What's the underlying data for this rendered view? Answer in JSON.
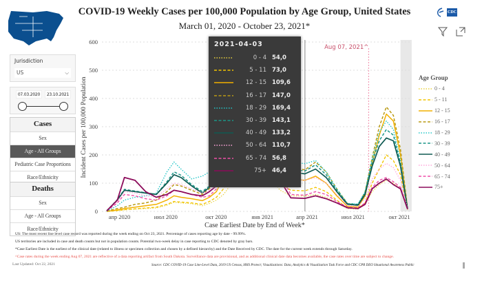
{
  "header": {
    "title": "COVID-19 Weekly Cases per 100,000 Population by Age Group, United States",
    "subtitle": "March 01, 2020 - October 23, 2021*",
    "logo_text": "CDC"
  },
  "filters": {
    "jurisdiction_label": "Jurisdiction",
    "jurisdiction_value": "US",
    "start_date": "07.03.2020",
    "end_date": "23.10.2021"
  },
  "cases_nav": {
    "title": "Cases",
    "items": [
      "Sex",
      "Age - All Groups",
      "Pediatric Case Proportions",
      "Race/Ethnicity"
    ],
    "active": 1
  },
  "deaths_nav": {
    "title": "Deaths",
    "items": [
      "Sex",
      "Age - All Groups",
      "Race/Ethnicity"
    ]
  },
  "notes": [
    "US: The most recent line level case record was reported during the week ending on Oct 23, 2021. Percentage of cases reporting age by date - 99.99%.",
    "US territories are included in case and death counts but not in population counts. Potential two-week delay in case reporting to CDC denoted by gray bars.",
    "*Case Earliest Date is the earliest of the clinical date (related to illness or specimen collection and chosen by a defined hierarchy) and the Date Received by CDC. The date for the current week extends through Saturday.",
    "^Case rates during the week ending Aug 07, 2021 are reflective of a data reporting artifact from South Dakota. Surveillance data are provisional, and as additional clinical date data becomes available, the case rates over time are subject to change."
  ],
  "last_updated": "Last Updated: Oct 22, 2021",
  "source": "Source: CDC COVID-19 Case Line-Level Data, 2019 US Census, HHS Protect; Visualizations: Data, Analytics & Visualization Task Force and CDC CPR DEO Situational Awareness Public",
  "tooltip": {
    "date": "2021-04-03",
    "rows": [
      [
        "0 - 4",
        "54,0"
      ],
      [
        "5 - 11",
        "73,0"
      ],
      [
        "12 - 15",
        "109,6"
      ],
      [
        "16 - 17",
        "147,0"
      ],
      [
        "18 - 29",
        "169,4"
      ],
      [
        "30 - 39",
        "143,1"
      ],
      [
        "40 - 49",
        "133,2"
      ],
      [
        "50 - 64",
        "110,7"
      ],
      [
        "65 - 74",
        "56,8"
      ],
      [
        "75+",
        "46,4"
      ]
    ]
  },
  "chart_data": {
    "type": "line",
    "title": "COVID-19 Weekly Cases per 100,000 Population by Age Group, United States",
    "xlabel": "Case Earliest Date by End of Week*",
    "ylabel": "Incident Cases per 100,000 Population",
    "ylim": [
      0,
      600
    ],
    "yticks": [
      0,
      100,
      200,
      300,
      400,
      500,
      600
    ],
    "xticks": [
      {
        "week": 3.6,
        "label": "апр 2020"
      },
      {
        "week": 16.7,
        "label": "июл 2020"
      },
      {
        "week": 30.9,
        "label": "окт 2020"
      },
      {
        "week": 44,
        "label": "янв 2021"
      },
      {
        "week": 56.6,
        "label": "апр 2021"
      },
      {
        "week": 69.6,
        "label": "июл 2021"
      },
      {
        "week": 82.7,
        "label": "окт 2021"
      }
    ],
    "x_unit": "weeks since 2020-03-07",
    "x": [
      0,
      3,
      5,
      8,
      11,
      14,
      17,
      19,
      21,
      24,
      27,
      29,
      31,
      33,
      36,
      39,
      41,
      43,
      46,
      49,
      52,
      56,
      59,
      62,
      65,
      68,
      71,
      73,
      75,
      77,
      79,
      81,
      83,
      85
    ],
    "annotation": {
      "week": 74,
      "label": "Aug 07, 2021^"
    },
    "hover_week": 56,
    "gray_bar_weeks": [
      83,
      85
    ],
    "legend_title": "Age Group",
    "legend_position": "right",
    "series": [
      {
        "name": "0 - 4",
        "color": "#ead23c",
        "dash": "1.5,2",
        "width": 1.2,
        "values": [
          0,
          3,
          5,
          8,
          10,
          12,
          22,
          32,
          30,
          27,
          20,
          28,
          40,
          60,
          110,
          140,
          150,
          160,
          120,
          75,
          55,
          54,
          60,
          50,
          30,
          10,
          8,
          25,
          70,
          95,
          110,
          100,
          80,
          6
        ]
      },
      {
        "name": "5 - 11",
        "color": "#f2c400",
        "dash": "4,2.5",
        "width": 1.4,
        "values": [
          0,
          3,
          6,
          9,
          12,
          15,
          25,
          35,
          33,
          30,
          25,
          35,
          50,
          80,
          150,
          200,
          220,
          230,
          170,
          100,
          75,
          73,
          85,
          70,
          40,
          12,
          10,
          30,
          100,
          150,
          200,
          180,
          130,
          8
        ]
      },
      {
        "name": "12 - 15",
        "color": "#f2b000",
        "dash": "",
        "width": 1.5,
        "values": [
          0,
          5,
          10,
          15,
          20,
          25,
          40,
          55,
          50,
          45,
          38,
          50,
          70,
          120,
          220,
          290,
          310,
          320,
          250,
          150,
          115,
          110,
          125,
          100,
          55,
          18,
          15,
          55,
          170,
          270,
          345,
          320,
          200,
          10
        ]
      },
      {
        "name": "16 - 17",
        "color": "#b99a14",
        "dash": "4,2.5",
        "width": 1.5,
        "values": [
          1,
          10,
          15,
          25,
          30,
          40,
          70,
          95,
          90,
          75,
          60,
          80,
          110,
          170,
          300,
          380,
          400,
          420,
          330,
          200,
          155,
          147,
          175,
          140,
          80,
          28,
          20,
          70,
          190,
          300,
          370,
          340,
          220,
          10
        ]
      },
      {
        "name": "18 - 29",
        "color": "#22c6c8",
        "dash": "1.5,2",
        "width": 1.4,
        "values": [
          1,
          20,
          40,
          50,
          55,
          65,
          140,
          175,
          150,
          115,
          125,
          140,
          150,
          190,
          330,
          440,
          470,
          490,
          380,
          230,
          175,
          169,
          180,
          140,
          80,
          28,
          26,
          70,
          185,
          280,
          320,
          290,
          180,
          10
        ]
      },
      {
        "name": "30 - 39",
        "color": "#1a9688",
        "dash": "4,2.5",
        "width": 1.5,
        "values": [
          2,
          42,
          78,
          72,
          66,
          60,
          105,
          140,
          128,
          95,
          70,
          90,
          115,
          170,
          300,
          400,
          440,
          470,
          360,
          210,
          150,
          143,
          165,
          130,
          75,
          27,
          25,
          65,
          175,
          250,
          290,
          270,
          170,
          10
        ]
      },
      {
        "name": "40 - 49",
        "color": "#0f5a52",
        "dash": "",
        "width": 1.7,
        "values": [
          2,
          40,
          75,
          70,
          65,
          60,
          100,
          130,
          120,
          90,
          65,
          85,
          110,
          160,
          280,
          380,
          420,
          450,
          340,
          200,
          140,
          133,
          150,
          120,
          70,
          25,
          22,
          60,
          160,
          230,
          260,
          250,
          160,
          10
        ]
      },
      {
        "name": "50 - 64",
        "color": "#ffa6da",
        "dash": "1.5,2",
        "width": 1.3,
        "values": [
          2,
          35,
          70,
          65,
          55,
          50,
          80,
          100,
          95,
          80,
          65,
          75,
          100,
          150,
          260,
          330,
          350,
          370,
          280,
          170,
          115,
          110,
          120,
          100,
          60,
          22,
          18,
          45,
          115,
          150,
          170,
          155,
          110,
          10
        ]
      },
      {
        "name": "65 - 74",
        "color": "#ef4fa8",
        "dash": "4,2.5",
        "width": 1.4,
        "values": [
          2,
          30,
          60,
          55,
          45,
          40,
          55,
          75,
          70,
          60,
          50,
          55,
          80,
          130,
          220,
          280,
          300,
          310,
          230,
          130,
          60,
          57,
          70,
          60,
          35,
          15,
          12,
          30,
          85,
          110,
          120,
          105,
          85,
          8
        ]
      },
      {
        "name": "75+",
        "color": "#8c0b5b",
        "dash": "",
        "width": 1.8,
        "values": [
          2,
          40,
          120,
          110,
          70,
          50,
          60,
          75,
          70,
          60,
          55,
          70,
          90,
          140,
          250,
          330,
          360,
          370,
          260,
          110,
          48,
          46,
          55,
          45,
          30,
          13,
          10,
          25,
          80,
          100,
          115,
          95,
          80,
          8
        ]
      }
    ]
  }
}
